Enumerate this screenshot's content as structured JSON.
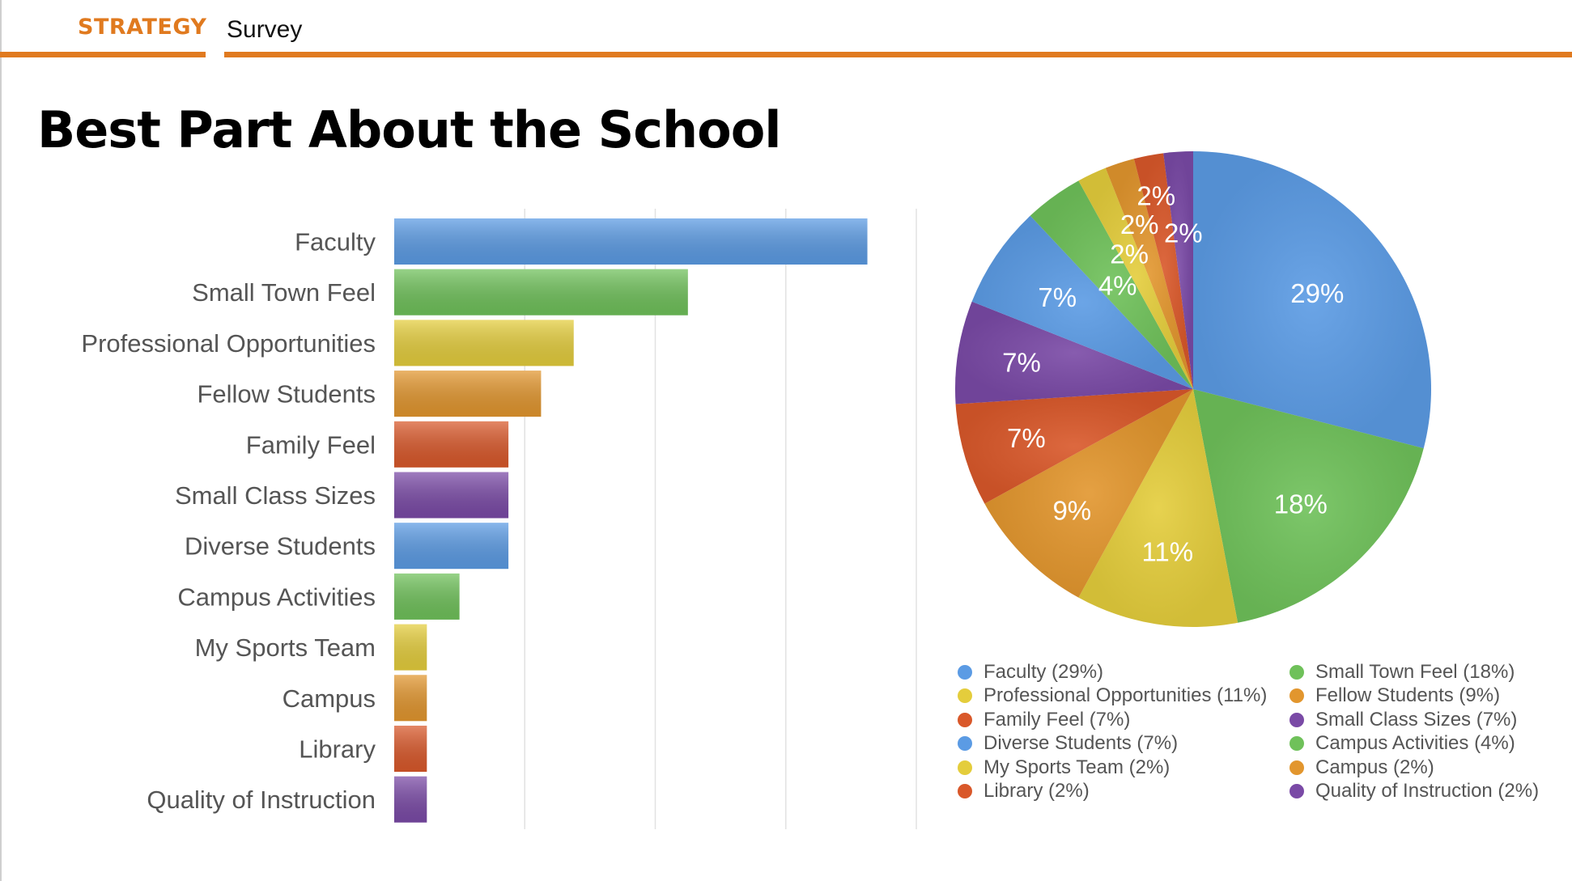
{
  "header": {
    "brand": "STRATEGY",
    "section": "Survey"
  },
  "slide": {
    "title": "Best Part About the School"
  },
  "colors": {
    "accent": "#e07a1f",
    "blue": "#5b9be4",
    "green": "#6fc15a",
    "yellow": "#e4cd3c",
    "orange": "#e2962e",
    "red": "#d9582a",
    "purple": "#7a4aa6"
  },
  "chart_data": [
    {
      "type": "bar",
      "orientation": "horizontal",
      "categories": [
        "Faculty",
        "Small Town Feel",
        "Professional Opportunities",
        "Fellow Students",
        "Family Feel",
        "Small Class Sizes",
        "Diverse Students",
        "Campus Activities",
        "My Sports Team",
        "Campus",
        "Library",
        "Quality of Instruction"
      ],
      "values": [
        29,
        18,
        11,
        9,
        7,
        7,
        7,
        4,
        2,
        2,
        2,
        2
      ],
      "bar_colors": [
        "#5b9be4",
        "#6fc15a",
        "#e4cd3c",
        "#e2962e",
        "#d9582a",
        "#7a4aa6",
        "#5b9be4",
        "#6fc15a",
        "#e4cd3c",
        "#e2962e",
        "#d9582a",
        "#7a4aa6"
      ],
      "xlim": [
        0,
        32
      ],
      "grid": true,
      "xlabel": "",
      "ylabel": ""
    },
    {
      "type": "pie",
      "categories": [
        "Faculty",
        "Small Town Feel",
        "Professional Opportunities",
        "Fellow Students",
        "Family Feel",
        "Small Class Sizes",
        "Diverse Students",
        "Campus Activities",
        "My Sports Team",
        "Campus",
        "Library",
        "Quality of Instruction"
      ],
      "values": [
        29,
        18,
        11,
        9,
        7,
        7,
        7,
        4,
        2,
        2,
        2,
        2
      ],
      "labels": [
        "29%",
        "18%",
        "11%",
        "9%",
        "7%",
        "7%",
        "7%",
        "4%",
        "2%",
        "2%",
        "2%",
        "2%"
      ],
      "slice_colors": [
        "#5b9be4",
        "#6fc15a",
        "#e4cd3c",
        "#e2962e",
        "#d9582a",
        "#7a4aa6",
        "#5b9be4",
        "#6fc15a",
        "#e4cd3c",
        "#e2962e",
        "#d9582a",
        "#7a4aa6"
      ],
      "legend_position": "bottom",
      "legend": [
        "Faculty (29%)",
        "Small Town Feel (18%)",
        "Professional Opportunities (11%)",
        "Fellow Students (9%)",
        "Family Feel (7%)",
        "Small Class Sizes (7%)",
        "Diverse Students (7%)",
        "Campus Activities (4%)",
        "My Sports Team (2%)",
        "Campus (2%)",
        "Library (2%)",
        "Quality of Instruction (2%)"
      ]
    }
  ]
}
